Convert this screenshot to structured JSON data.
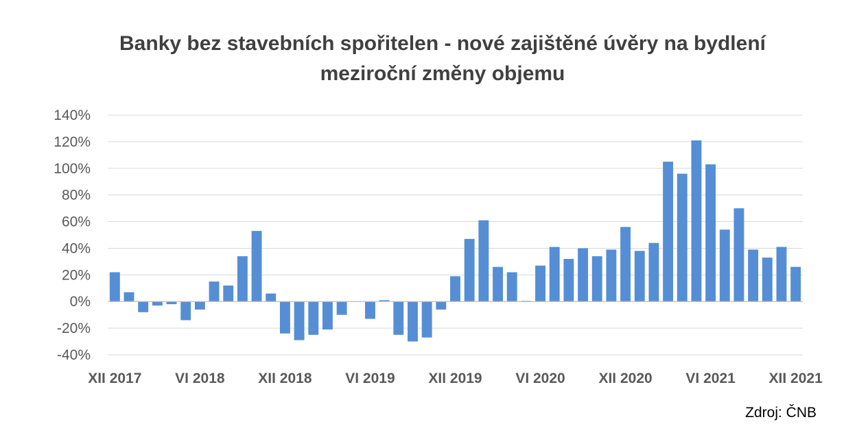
{
  "chart_data": {
    "type": "bar",
    "title_lines": [
      "Banky bez stavebních spořitelen - nové zajištěné úvěry na bydlení",
      "meziroční změny objemu"
    ],
    "source": "Zdroj: ČNB",
    "ylim": [
      -40,
      140
    ],
    "ytick_values": [
      -40,
      -20,
      0,
      20,
      40,
      60,
      80,
      100,
      120,
      140
    ],
    "ytick_labels": [
      "-40%",
      "-20%",
      "0%",
      "20%",
      "40%",
      "60%",
      "80%",
      "100%",
      "120%",
      "140%"
    ],
    "xtick_labels": [
      {
        "label": "XII 2017",
        "index": 0
      },
      {
        "label": "VI 2018",
        "index": 6
      },
      {
        "label": "XII 2018",
        "index": 12
      },
      {
        "label": "VI 2019",
        "index": 18
      },
      {
        "label": "XII 2019",
        "index": 24
      },
      {
        "label": "VI 2020",
        "index": 30
      },
      {
        "label": "XII 2020",
        "index": 36
      },
      {
        "label": "VI 2021",
        "index": 42
      },
      {
        "label": "XII 2021",
        "index": 48
      }
    ],
    "grid": true,
    "legend": "none",
    "bar_color": "#558ed5",
    "values": [
      22,
      7,
      -8,
      -3,
      -2,
      -14,
      -6,
      15,
      12,
      34,
      53,
      6,
      -24,
      -29,
      -25,
      -21,
      -10,
      0,
      -13,
      1,
      -25,
      -30,
      -27,
      -6,
      19,
      47,
      61,
      26,
      22,
      0.5,
      27,
      41,
      32,
      40,
      34,
      39,
      56,
      38,
      44,
      105,
      96,
      121,
      103,
      54,
      70,
      39,
      33,
      41,
      26
    ]
  }
}
